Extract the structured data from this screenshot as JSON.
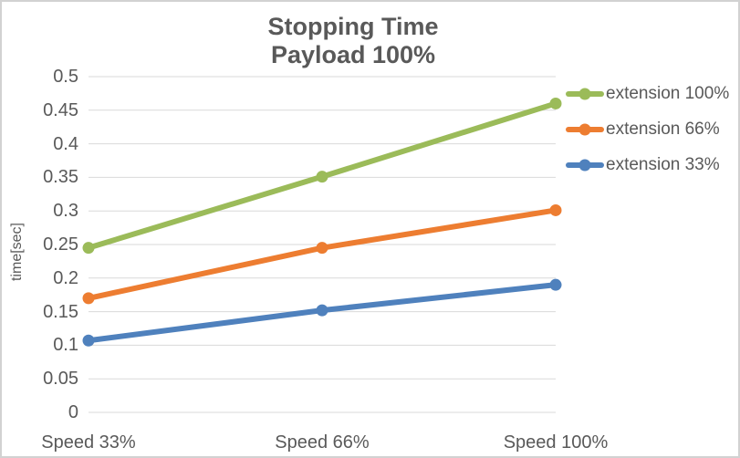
{
  "title": {
    "line1": "Stopping Time",
    "line2": "Payload 100%"
  },
  "axes": {
    "y_title": "time[sec]"
  },
  "colors": {
    "text": "#595959",
    "gridline": "#d9d9d9",
    "border": "#d2d2d2",
    "series_green": "#9bbb59",
    "series_orange": "#ed7d31",
    "series_blue": "#4f81bd"
  },
  "chart_data": {
    "type": "line",
    "title": "Stopping Time",
    "subtitle": "Payload 100%",
    "categories": [
      "Speed 33%",
      "Speed 66%",
      "Speed 100%"
    ],
    "series": [
      {
        "name": "extension 100%",
        "color": "#9bbb59",
        "values": [
          0.245,
          0.351,
          0.46
        ]
      },
      {
        "name": "extension 66%",
        "color": "#ed7d31",
        "values": [
          0.17,
          0.245,
          0.301
        ]
      },
      {
        "name": "extension 33%",
        "color": "#4f81bd",
        "values": [
          0.107,
          0.152,
          0.19
        ]
      }
    ],
    "xlabel": "",
    "ylabel": "time[sec]",
    "ylim": [
      0,
      0.5
    ],
    "ytick_step": 0.05,
    "yticks": [
      0,
      0.05,
      0.1,
      0.15,
      0.2,
      0.25,
      0.3,
      0.35,
      0.4,
      0.45,
      0.5
    ],
    "ytick_labels": [
      "0",
      "0.05",
      "0.1",
      "0.15",
      "0.2",
      "0.25",
      "0.3",
      "0.35",
      "0.4",
      "0.45",
      "0.5"
    ],
    "grid": true,
    "legend_position": "right",
    "marker": "circle",
    "line_width": 6,
    "marker_size": 13
  }
}
